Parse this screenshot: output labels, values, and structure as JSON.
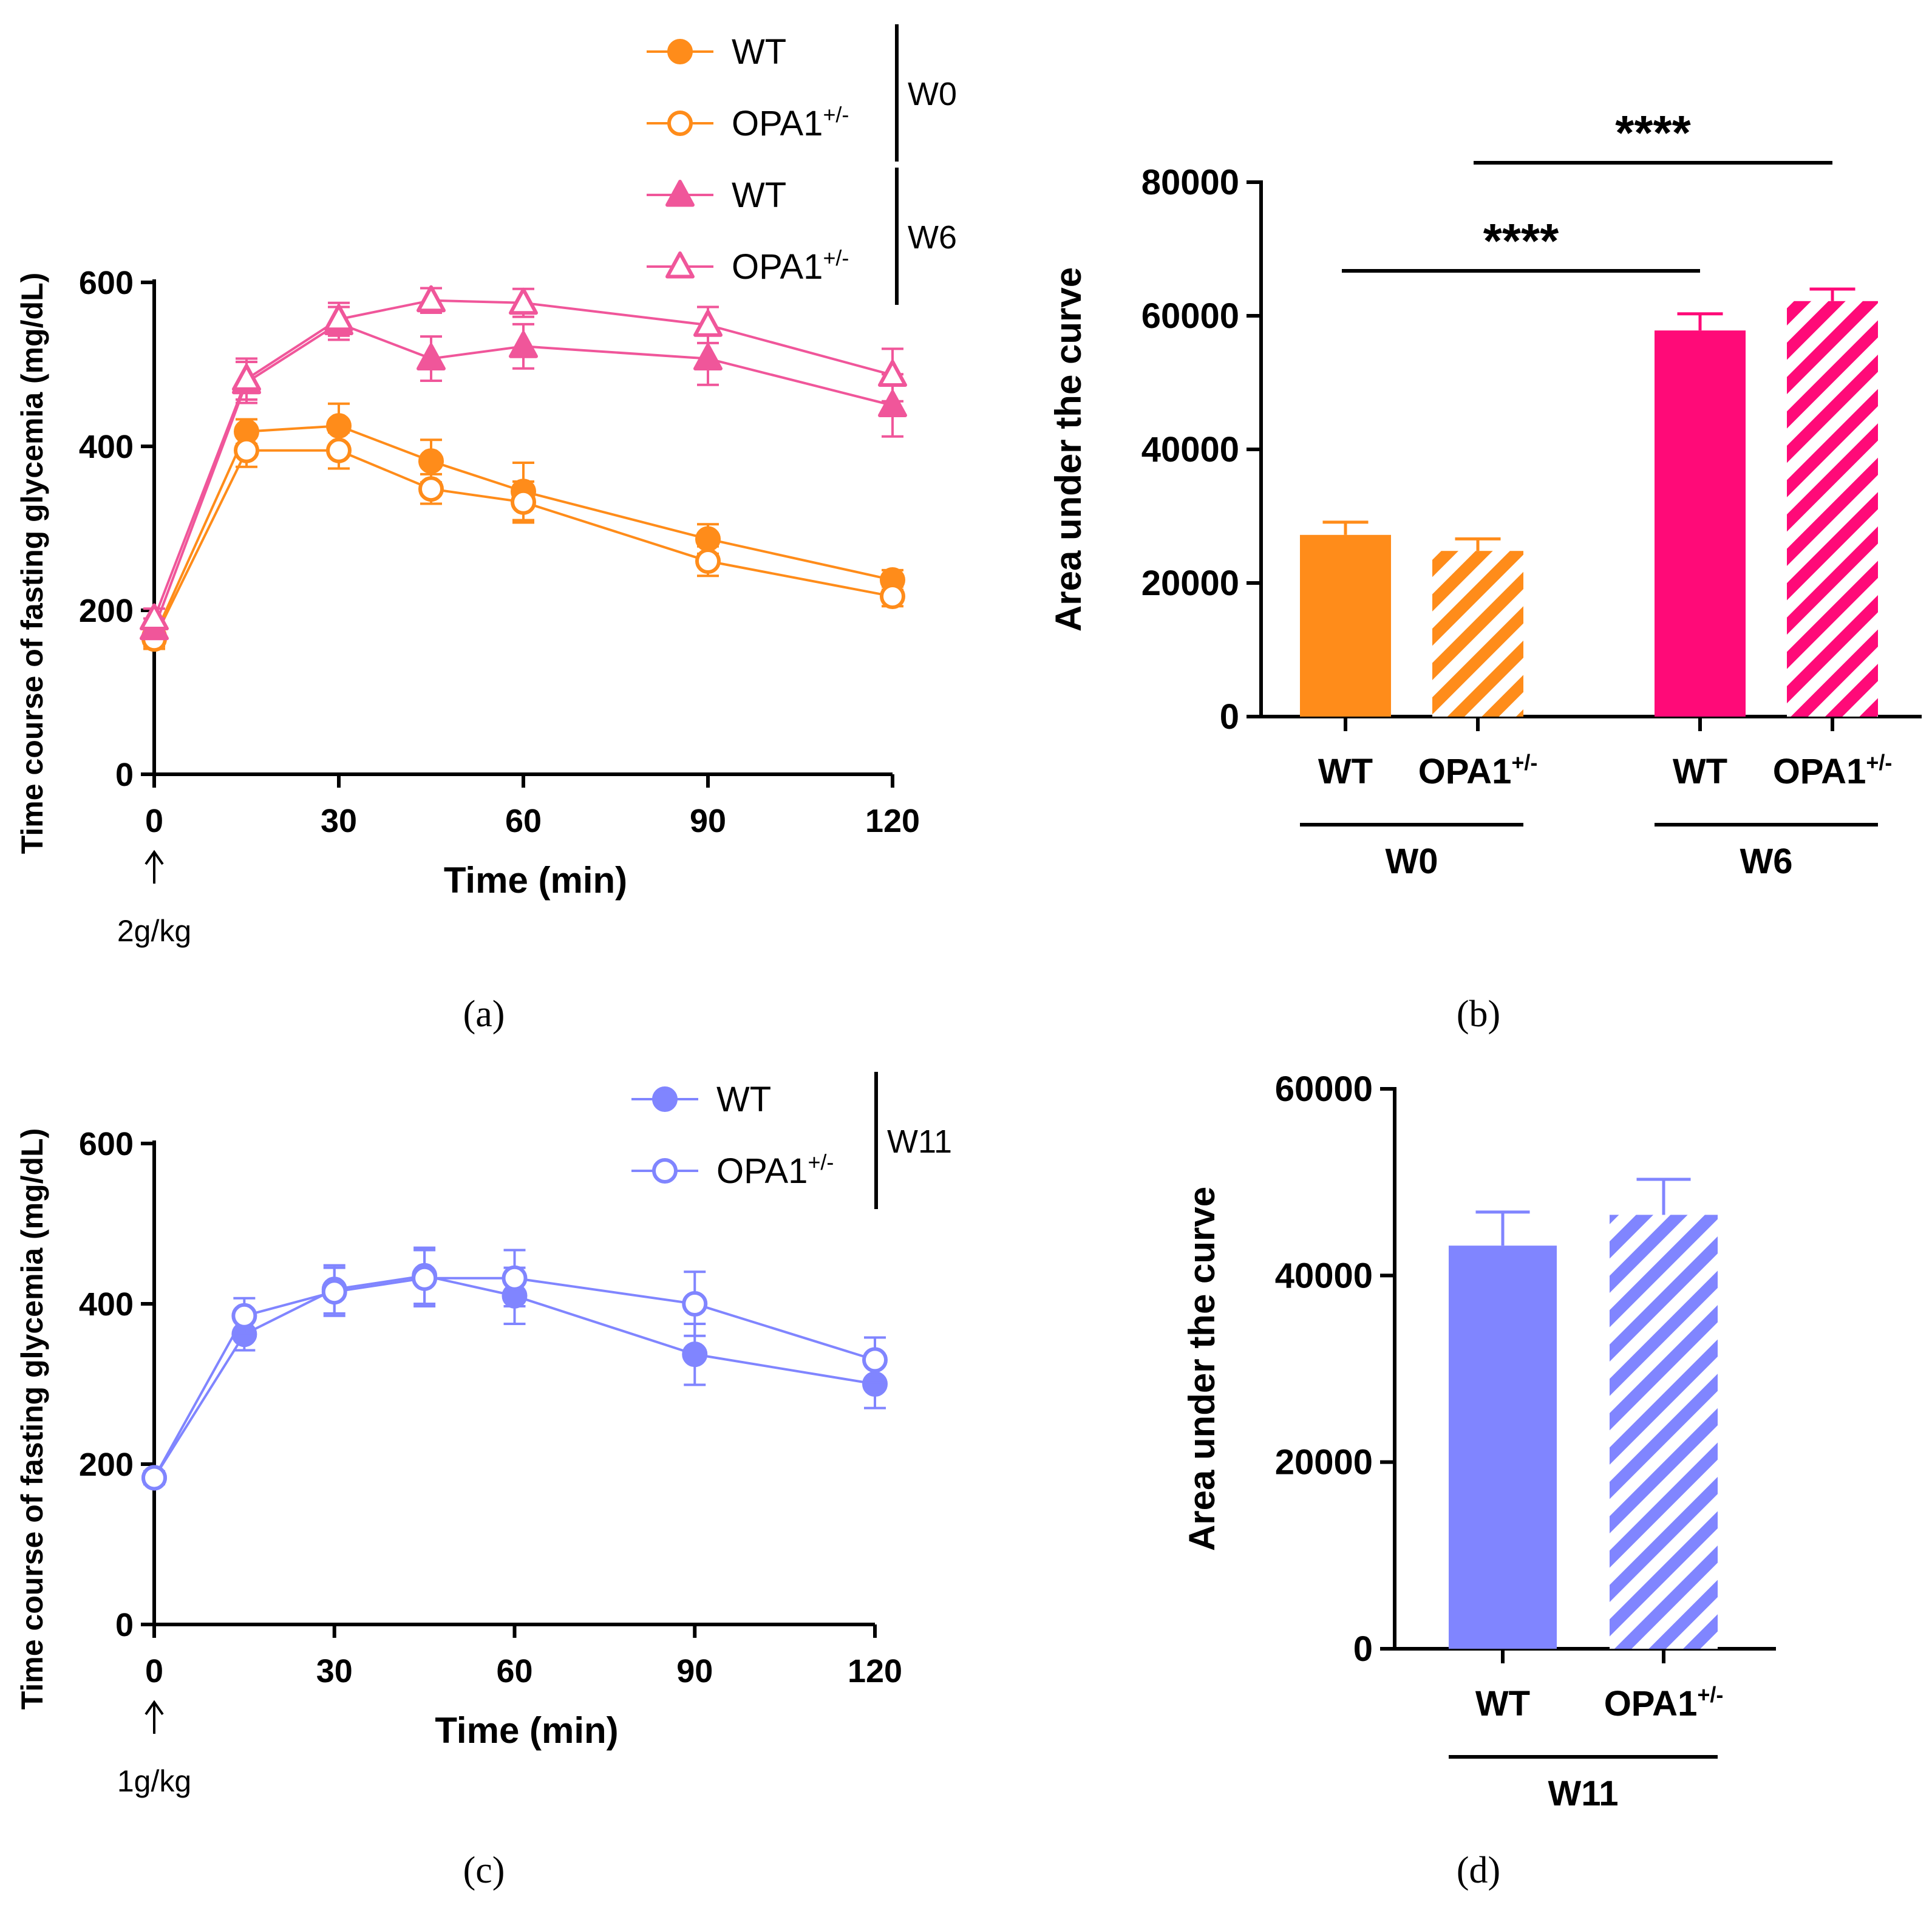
{
  "colors": {
    "w0": "#FF8C1A",
    "w6": "#F0569A",
    "w6_bar": "#FF0A78",
    "w11": "#8085FF",
    "axis": "#000000"
  },
  "chart_data": [
    {
      "panel": "a",
      "type": "line",
      "panel_label": "(a)",
      "xlabel": "Time (min)",
      "ylabel": "Time course of fasting glycemia (mg/dL)",
      "x": [
        0,
        15,
        30,
        45,
        60,
        90,
        120
      ],
      "xticks": [
        "0",
        "30",
        "60",
        "90",
        "120"
      ],
      "yticks": [
        "0",
        "200",
        "400",
        "600"
      ],
      "ylim": [
        0,
        600
      ],
      "xlim": [
        0,
        120
      ],
      "annotation": "2g/kg",
      "series": [
        {
          "name": "WT",
          "group": "W0",
          "marker": "filled-circle",
          "color": "#FF8C1A",
          "values": [
            168,
            418,
            425,
            382,
            345,
            287,
            237
          ],
          "errors": [
            12,
            15,
            27,
            26,
            35,
            18,
            12
          ]
        },
        {
          "name": "OPA1+/-",
          "group": "W0",
          "marker": "open-circle",
          "color": "#FF8C1A",
          "values": [
            165,
            395,
            395,
            348,
            332,
            260,
            217
          ],
          "errors": [
            12,
            20,
            22,
            18,
            25,
            18,
            12
          ]
        },
        {
          "name": "WT",
          "group": "W6",
          "marker": "filled-triangle",
          "color": "#F0569A",
          "values": [
            178,
            478,
            550,
            507,
            522,
            507,
            450
          ],
          "errors": [
            12,
            25,
            20,
            27,
            27,
            32,
            38
          ]
        },
        {
          "name": "OPA1+/-",
          "group": "W6",
          "marker": "open-triangle",
          "color": "#F0569A",
          "values": [
            190,
            482,
            555,
            578,
            575,
            548,
            487
          ],
          "errors": [
            12,
            25,
            20,
            15,
            17,
            22,
            32
          ]
        }
      ],
      "legend": {
        "entries": [
          {
            "label": "WT",
            "sup": ""
          },
          {
            "label": "OPA1",
            "sup": "+/-"
          },
          {
            "label": "WT",
            "sup": ""
          },
          {
            "label": "OPA1",
            "sup": "+/-"
          }
        ],
        "groups": [
          "W0",
          "W6"
        ],
        "placement": "top-right"
      }
    },
    {
      "panel": "b",
      "type": "bar",
      "panel_label": "(b)",
      "ylabel": "Area under the curve",
      "ylim": [
        0,
        80000
      ],
      "yticks": [
        "0",
        "20000",
        "40000",
        "60000",
        "80000"
      ],
      "categories": [
        {
          "label": "WT",
          "sup": ""
        },
        {
          "label": "OPA1",
          "sup": "+/-"
        },
        {
          "label": "WT",
          "sup": ""
        },
        {
          "label": "OPA1",
          "sup": "+/-"
        }
      ],
      "groups": [
        "W0",
        "W6"
      ],
      "values": [
        27200,
        24800,
        57800,
        62200
      ],
      "errors": [
        1900,
        1800,
        2500,
        1800
      ],
      "patterns": [
        "solid",
        "hatched",
        "solid",
        "hatched"
      ],
      "significance": [
        {
          "label": "****",
          "from": "W0 WT",
          "to": "W6 WT"
        },
        {
          "label": "****",
          "from": "W0 OPA1+/-",
          "to": "W6 OPA1+/-"
        }
      ]
    },
    {
      "panel": "c",
      "type": "line",
      "panel_label": "(c)",
      "xlabel": "Time (min)",
      "ylabel": "Time course of fasting glycemia (mg/dL)",
      "x": [
        0,
        15,
        30,
        45,
        60,
        90,
        120
      ],
      "xticks": [
        "0",
        "30",
        "60",
        "90",
        "120"
      ],
      "yticks": [
        "0",
        "200",
        "400",
        "600"
      ],
      "ylim": [
        0,
        600
      ],
      "xlim": [
        0,
        120
      ],
      "annotation": "1g/kg",
      "series": [
        {
          "name": "WT",
          "group": "W11",
          "marker": "filled-circle",
          "color": "#8085FF",
          "values": [
            183,
            362,
            418,
            435,
            410,
            337,
            300
          ],
          "errors": [
            8,
            20,
            30,
            35,
            35,
            38,
            30
          ]
        },
        {
          "name": "OPA1+/-",
          "group": "W11",
          "marker": "open-circle",
          "color": "#8085FF",
          "values": [
            183,
            385,
            415,
            432,
            432,
            400,
            330
          ],
          "errors": [
            8,
            22,
            30,
            35,
            35,
            40,
            28
          ]
        }
      ],
      "legend": {
        "entries": [
          {
            "label": "WT",
            "sup": ""
          },
          {
            "label": "OPA1",
            "sup": "+/-"
          }
        ],
        "groups": [
          "W11"
        ],
        "placement": "top-right"
      }
    },
    {
      "panel": "d",
      "type": "bar",
      "panel_label": "(d)",
      "ylabel": "Area under the curve",
      "ylim": [
        0,
        60000
      ],
      "yticks": [
        "0",
        "20000",
        "40000",
        "60000"
      ],
      "categories": [
        {
          "label": "WT",
          "sup": ""
        },
        {
          "label": "OPA1",
          "sup": "+/-"
        }
      ],
      "groups": [
        "W11"
      ],
      "values": [
        43200,
        46500
      ],
      "errors": [
        3600,
        3800
      ],
      "patterns": [
        "solid",
        "hatched"
      ]
    }
  ]
}
